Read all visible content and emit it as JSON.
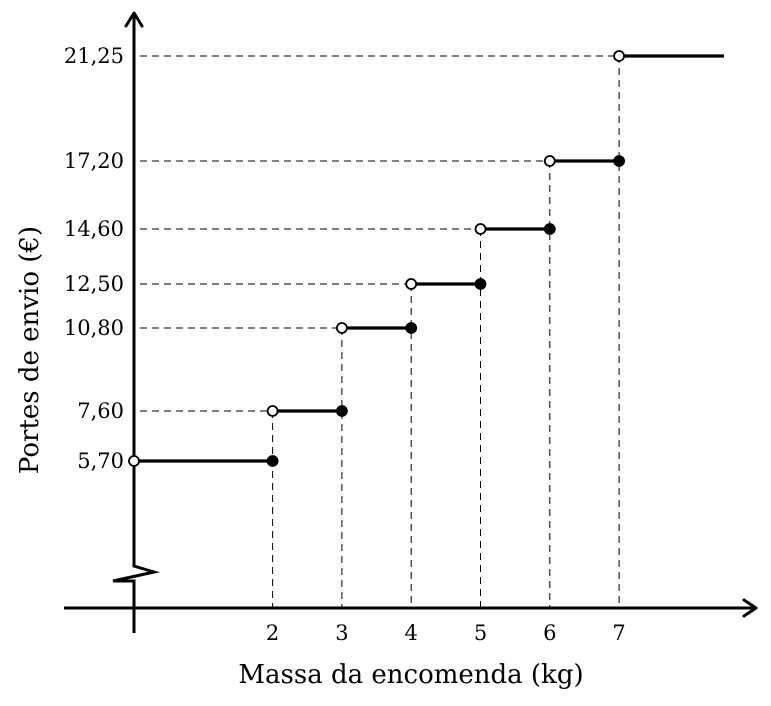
{
  "chart_data": {
    "type": "line",
    "subtype": "step",
    "xlabel": "Massa da encomenda (kg)",
    "ylabel": "Portes de envio (€)",
    "x_ticks": [
      "2",
      "3",
      "4",
      "5",
      "6",
      "7"
    ],
    "x_tick_values": [
      2,
      3,
      4,
      5,
      6,
      7
    ],
    "y_ticks": [
      "5,70",
      "7,60",
      "10,80",
      "12,50",
      "14,60",
      "17,20",
      "21,25"
    ],
    "y_tick_values": [
      5.7,
      7.6,
      10.8,
      12.5,
      14.6,
      17.2,
      21.25
    ],
    "xlim": [
      0,
      8.5
    ],
    "y_axis_break": true,
    "grid": false,
    "legend": "none",
    "steps": [
      {
        "x_start": 0,
        "x_end": 2,
        "y": 5.7,
        "start_open": true,
        "end_open": false
      },
      {
        "x_start": 2,
        "x_end": 3,
        "y": 7.6,
        "start_open": true,
        "end_open": false
      },
      {
        "x_start": 3,
        "x_end": 4,
        "y": 10.8,
        "start_open": true,
        "end_open": false
      },
      {
        "x_start": 4,
        "x_end": 5,
        "y": 12.5,
        "start_open": true,
        "end_open": false
      },
      {
        "x_start": 5,
        "x_end": 6,
        "y": 14.6,
        "start_open": true,
        "end_open": false
      },
      {
        "x_start": 6,
        "x_end": 7,
        "y": 17.2,
        "start_open": true,
        "end_open": false
      },
      {
        "x_start": 7,
        "x_end": 8.5,
        "y": 21.25,
        "start_open": true,
        "end_open": null
      }
    ]
  }
}
